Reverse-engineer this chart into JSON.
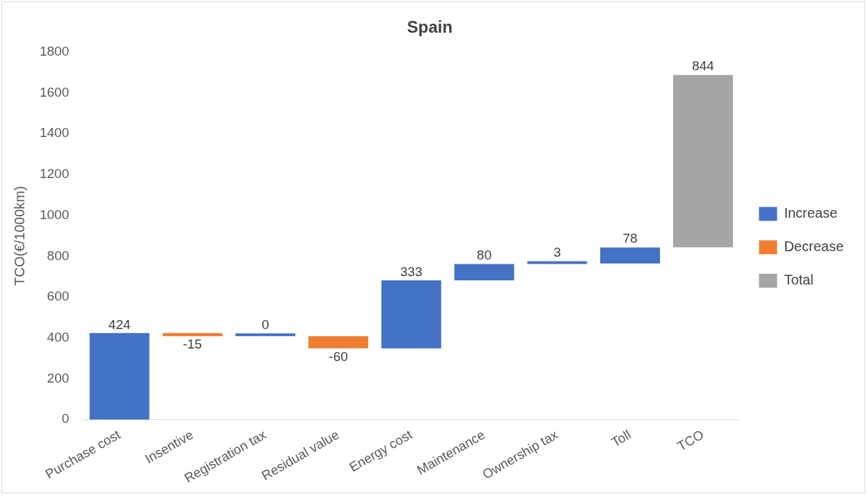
{
  "chart_data": {
    "type": "bar",
    "title": "Spain",
    "ylabel": "TCO(€/1000km)",
    "categories": [
      "Purchase cost",
      "Insentive",
      "Registration tax",
      "Residual value",
      "Energy cost",
      "Maintenance",
      "Ownership tax",
      "Toll",
      "TCO"
    ],
    "series": [
      {
        "name": "Increase",
        "color": "#4472c4",
        "values": [
          424,
          null,
          0,
          null,
          333,
          80,
          3,
          78,
          null
        ],
        "base": [
          0,
          null,
          409,
          null,
          349,
          682,
          762,
          765,
          null
        ]
      },
      {
        "name": "Decrease",
        "color": "#ed7d31",
        "values": [
          null,
          -15,
          null,
          -60,
          null,
          null,
          null,
          null,
          null
        ],
        "base": [
          null,
          424,
          null,
          409,
          null,
          null,
          null,
          null,
          null
        ]
      },
      {
        "name": "Total",
        "color": "#a5a5a5",
        "values": [
          null,
          null,
          null,
          null,
          null,
          null,
          null,
          null,
          844
        ],
        "base": [
          null,
          null,
          null,
          null,
          null,
          null,
          null,
          null,
          844
        ]
      }
    ],
    "ylim": [
      0,
      1800
    ],
    "yticks": [
      0,
      200,
      400,
      600,
      800,
      1000,
      1200,
      1400,
      1600,
      1800
    ],
    "grid": false,
    "legend": "right",
    "data_labels": true
  }
}
